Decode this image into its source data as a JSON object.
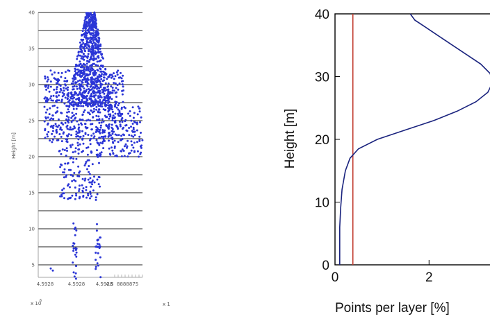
{
  "chart_data": [
    {
      "type": "scatter",
      "ylabel": "Height [m]",
      "ylim": [
        3,
        40
      ],
      "yticks": [
        "5",
        "10",
        "15",
        "20",
        "25",
        "30",
        "35",
        "40"
      ],
      "xticks": [
        "4.5928",
        "4.5928",
        "4.5928",
        "4.5"
      ],
      "x_overflow_text": "8888875",
      "x_exponent_label": "x 10",
      "x_exponent_power": "6",
      "x_side_label": "x 1",
      "grid": "horizontal lines every 2.5 m",
      "point_color": "#2a35d6",
      "regions": [
        {
          "y": [
            27,
            40
          ],
          "xmin_at_bottom": [
            0.28,
            0.72
          ],
          "xmin_at_top": [
            0.46,
            0.54
          ]
        },
        {
          "y": [
            22,
            32
          ],
          "x": [
            0.06,
            0.82
          ]
        },
        {
          "y": [
            20,
            27
          ],
          "x": [
            0.55,
            1.0
          ]
        },
        {
          "y": [
            14,
            22
          ],
          "x": [
            0.2,
            0.6
          ]
        },
        {
          "y": [
            3,
            11
          ],
          "x": [
            0.33,
            0.37
          ]
        },
        {
          "y": [
            3,
            11
          ],
          "x": [
            0.55,
            0.6
          ]
        }
      ]
    },
    {
      "type": "line",
      "xlabel": "Points per layer [%]",
      "ylabel": "Height [m]",
      "xlim": [
        0,
        3.4
      ],
      "ylim": [
        0,
        40
      ],
      "xticks": [
        "0",
        "2"
      ],
      "yticks": [
        "0",
        "10",
        "20",
        "30",
        "40"
      ],
      "series": [
        {
          "color": "#1a237e",
          "x": [
            0.1,
            0.1,
            0.1,
            0.12,
            0.15,
            0.22,
            0.32,
            0.5,
            0.9,
            1.5,
            2.1,
            2.6,
            3.0,
            3.25,
            3.35,
            3.3,
            3.1,
            2.8,
            2.5,
            2.2,
            1.9,
            1.7,
            1.6
          ],
          "y": [
            0,
            3,
            6,
            9,
            12,
            15,
            17,
            18.5,
            20,
            21.5,
            23,
            24.5,
            26,
            27.5,
            29,
            30.5,
            32,
            33.5,
            35,
            36.5,
            38,
            39,
            40
          ]
        }
      ],
      "reference_line": {
        "x": 0.38,
        "color": "#c0392b"
      }
    }
  ]
}
